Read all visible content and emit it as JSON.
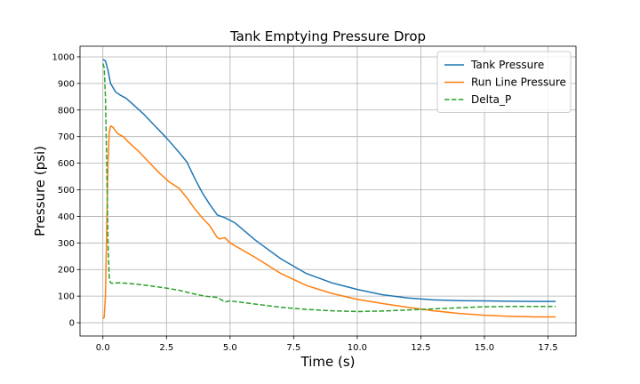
{
  "chart_data": {
    "type": "line",
    "title": "Tank Emptying Pressure Drop",
    "xlabel": "Time (s)",
    "ylabel": "Pressure (psi)",
    "xlim": [
      -0.9,
      18.6
    ],
    "ylim": [
      -50,
      1040
    ],
    "xticks": [
      0,
      2.5,
      5,
      7.5,
      10,
      12.5,
      15,
      17.5
    ],
    "xtick_labels": [
      "0.0",
      "2.5",
      "5.0",
      "7.5",
      "10.0",
      "12.5",
      "15.0",
      "17.5"
    ],
    "yticks": [
      0,
      100,
      200,
      300,
      400,
      500,
      600,
      700,
      800,
      900,
      1000
    ],
    "ytick_labels": [
      "0",
      "100",
      "200",
      "300",
      "400",
      "500",
      "600",
      "700",
      "800",
      "900",
      "1000"
    ],
    "grid": true,
    "legend_position": "top-right",
    "series": [
      {
        "name": "Tank Pressure",
        "color": "#1f77b4",
        "style": "solid",
        "x": [
          0,
          0.1,
          0.2,
          0.3,
          0.5,
          0.7,
          0.9,
          1.2,
          1.6,
          2.0,
          2.5,
          3.0,
          3.3,
          3.6,
          3.9,
          4.2,
          4.5,
          4.8,
          5.2,
          6.0,
          7.0,
          8.0,
          9.0,
          10.0,
          11.0,
          12.0,
          13.0,
          14.0,
          15.0,
          16.0,
          17.0,
          17.8
        ],
        "y": [
          990,
          985,
          950,
          900,
          868,
          855,
          845,
          820,
          785,
          745,
          695,
          640,
          605,
          545,
          490,
          445,
          405,
          395,
          375,
          310,
          240,
          185,
          150,
          125,
          105,
          93,
          86,
          83,
          82,
          81,
          80,
          80
        ]
      },
      {
        "name": "Run Line Pressure",
        "color": "#ff7f0e",
        "style": "solid",
        "x": [
          0,
          0.05,
          0.1,
          0.15,
          0.2,
          0.25,
          0.3,
          0.4,
          0.5,
          0.6,
          0.8,
          1.0,
          1.4,
          1.8,
          2.2,
          2.6,
          3.0,
          3.3,
          3.6,
          3.9,
          4.2,
          4.5,
          4.6,
          4.8,
          5.0,
          6.0,
          7.0,
          8.0,
          9.0,
          10.0,
          11.0,
          12.0,
          13.0,
          14.0,
          15.0,
          16.0,
          17.0,
          17.8
        ],
        "y": [
          15,
          20,
          100,
          350,
          600,
          715,
          740,
          735,
          720,
          710,
          700,
          680,
          645,
          605,
          565,
          530,
          505,
          470,
          430,
          395,
          365,
          320,
          315,
          320,
          300,
          245,
          185,
          140,
          110,
          88,
          72,
          58,
          45,
          35,
          28,
          24,
          22,
          22
        ]
      },
      {
        "name": "Delta_P",
        "color": "#2ca02c",
        "style": "dashed",
        "x": [
          0,
          0.05,
          0.1,
          0.15,
          0.2,
          0.25,
          0.3,
          0.4,
          0.6,
          1.0,
          1.5,
          2.0,
          2.5,
          3.0,
          3.5,
          4.0,
          4.5,
          4.8,
          5.0,
          6.0,
          7.0,
          8.0,
          9.0,
          10.0,
          11.0,
          12.0,
          13.0,
          14.0,
          15.0,
          16.0,
          17.0,
          17.8
        ],
        "y": [
          975,
          960,
          850,
          600,
          300,
          170,
          150,
          148,
          150,
          148,
          143,
          137,
          130,
          122,
          110,
          100,
          95,
          78,
          82,
          70,
          58,
          50,
          45,
          42,
          44,
          48,
          52,
          56,
          60,
          61,
          61,
          61
        ]
      }
    ]
  }
}
